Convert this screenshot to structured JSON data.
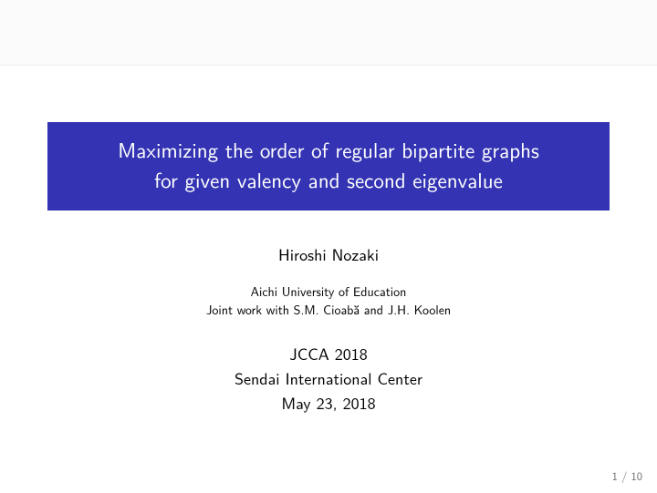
{
  "colors": {
    "title_bg": "#3333b3",
    "title_fg": "#ffffff",
    "topbar_bg": "#fbfbfb",
    "topbar_border": "#ededed",
    "body_text": "#000000",
    "pager_text": "#6b6b6b",
    "page_bg": "#ffffff"
  },
  "title": {
    "line1": "Maximizing the order of regular bipartite graphs",
    "line2": "for given valency and second eigenvalue",
    "fontsize": 23
  },
  "author": "Hiroshi Nozaki",
  "affiliation": {
    "line1": "Aichi University of Education",
    "line2": "Joint work with S.M. Cioabă and J.H. Koolen"
  },
  "venue": {
    "line1": "JCCA 2018",
    "line2": "Sendai International Center",
    "line3": "May 23, 2018"
  },
  "pager": {
    "current": "1",
    "sep": " / ",
    "total": "10"
  }
}
